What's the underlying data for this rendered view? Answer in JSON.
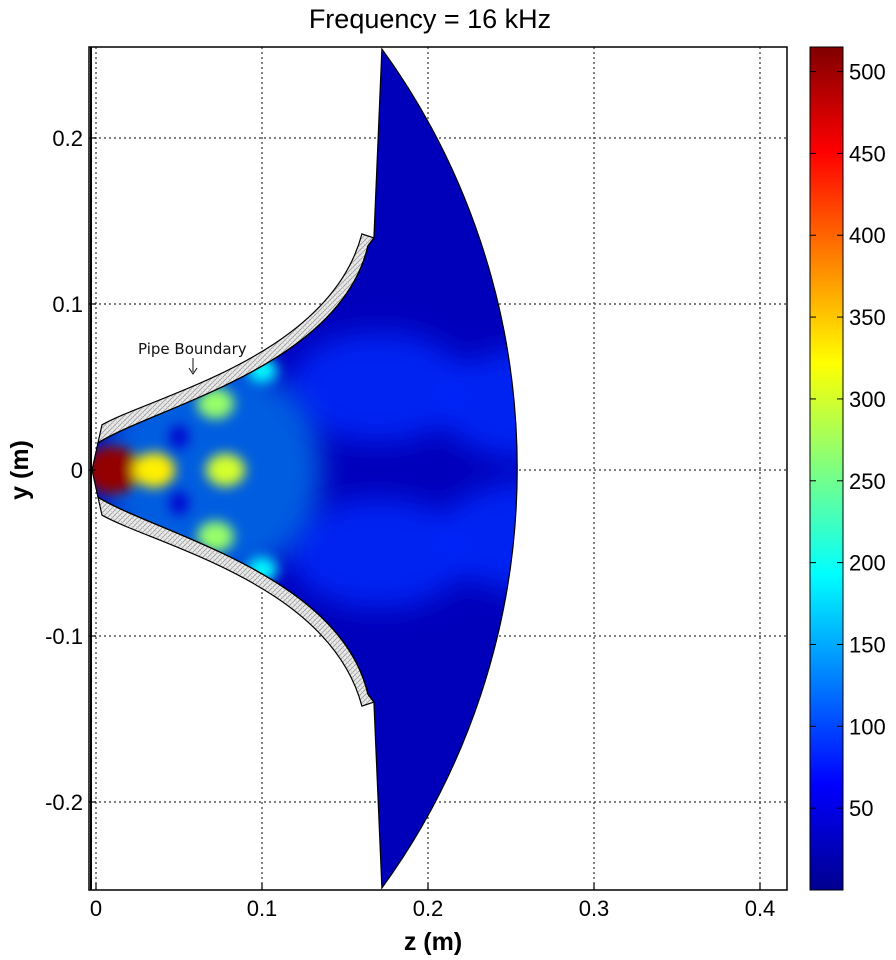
{
  "chart_data": {
    "type": "heatmap",
    "title": "Frequency = 16 kHz",
    "xlabel": "z (m)",
    "ylabel": "y (m)",
    "xlim": [
      -0.005,
      0.415
    ],
    "ylim": [
      -0.25,
      0.255
    ],
    "xticks": [
      0,
      0.1,
      0.2,
      0.3,
      0.4
    ],
    "xtick_labels": [
      "0",
      "0.1",
      "0.2",
      "0.3",
      "0.4"
    ],
    "yticks": [
      0.2,
      0.1,
      0,
      -0.1,
      -0.2
    ],
    "ytick_labels": [
      "0.2",
      "0.1",
      "0",
      "-0.1",
      "-0.2"
    ],
    "grid": true,
    "colormap": "jet",
    "clim": [
      0,
      515
    ],
    "colorbar_ticks": [
      500,
      450,
      400,
      350,
      300,
      250,
      200,
      150,
      100,
      50
    ],
    "colorbar_tick_labels": [
      "500",
      "450",
      "400",
      "350",
      "300",
      "250",
      "200",
      "150",
      "100",
      "50"
    ],
    "annotation": "Pipe Boundary",
    "domain": {
      "pipe_mouth_z": 0.165,
      "pipe_mouth_half_width": 0.135,
      "pipe_throat_half_width": 0.02,
      "outer_arc_radius": 0.41
    },
    "hotspots": [
      {
        "z": 0.01,
        "y": 0.0,
        "value": 505
      },
      {
        "z": 0.035,
        "y": 0.0,
        "value": 330
      },
      {
        "z": 0.078,
        "y": 0.0,
        "value": 300
      },
      {
        "z": 0.072,
        "y": 0.04,
        "value": 270
      },
      {
        "z": 0.072,
        "y": -0.04,
        "value": 270
      },
      {
        "z": 0.1,
        "y": 0.06,
        "value": 190
      },
      {
        "z": 0.1,
        "y": -0.06,
        "value": 190
      }
    ],
    "background_value": 30
  }
}
